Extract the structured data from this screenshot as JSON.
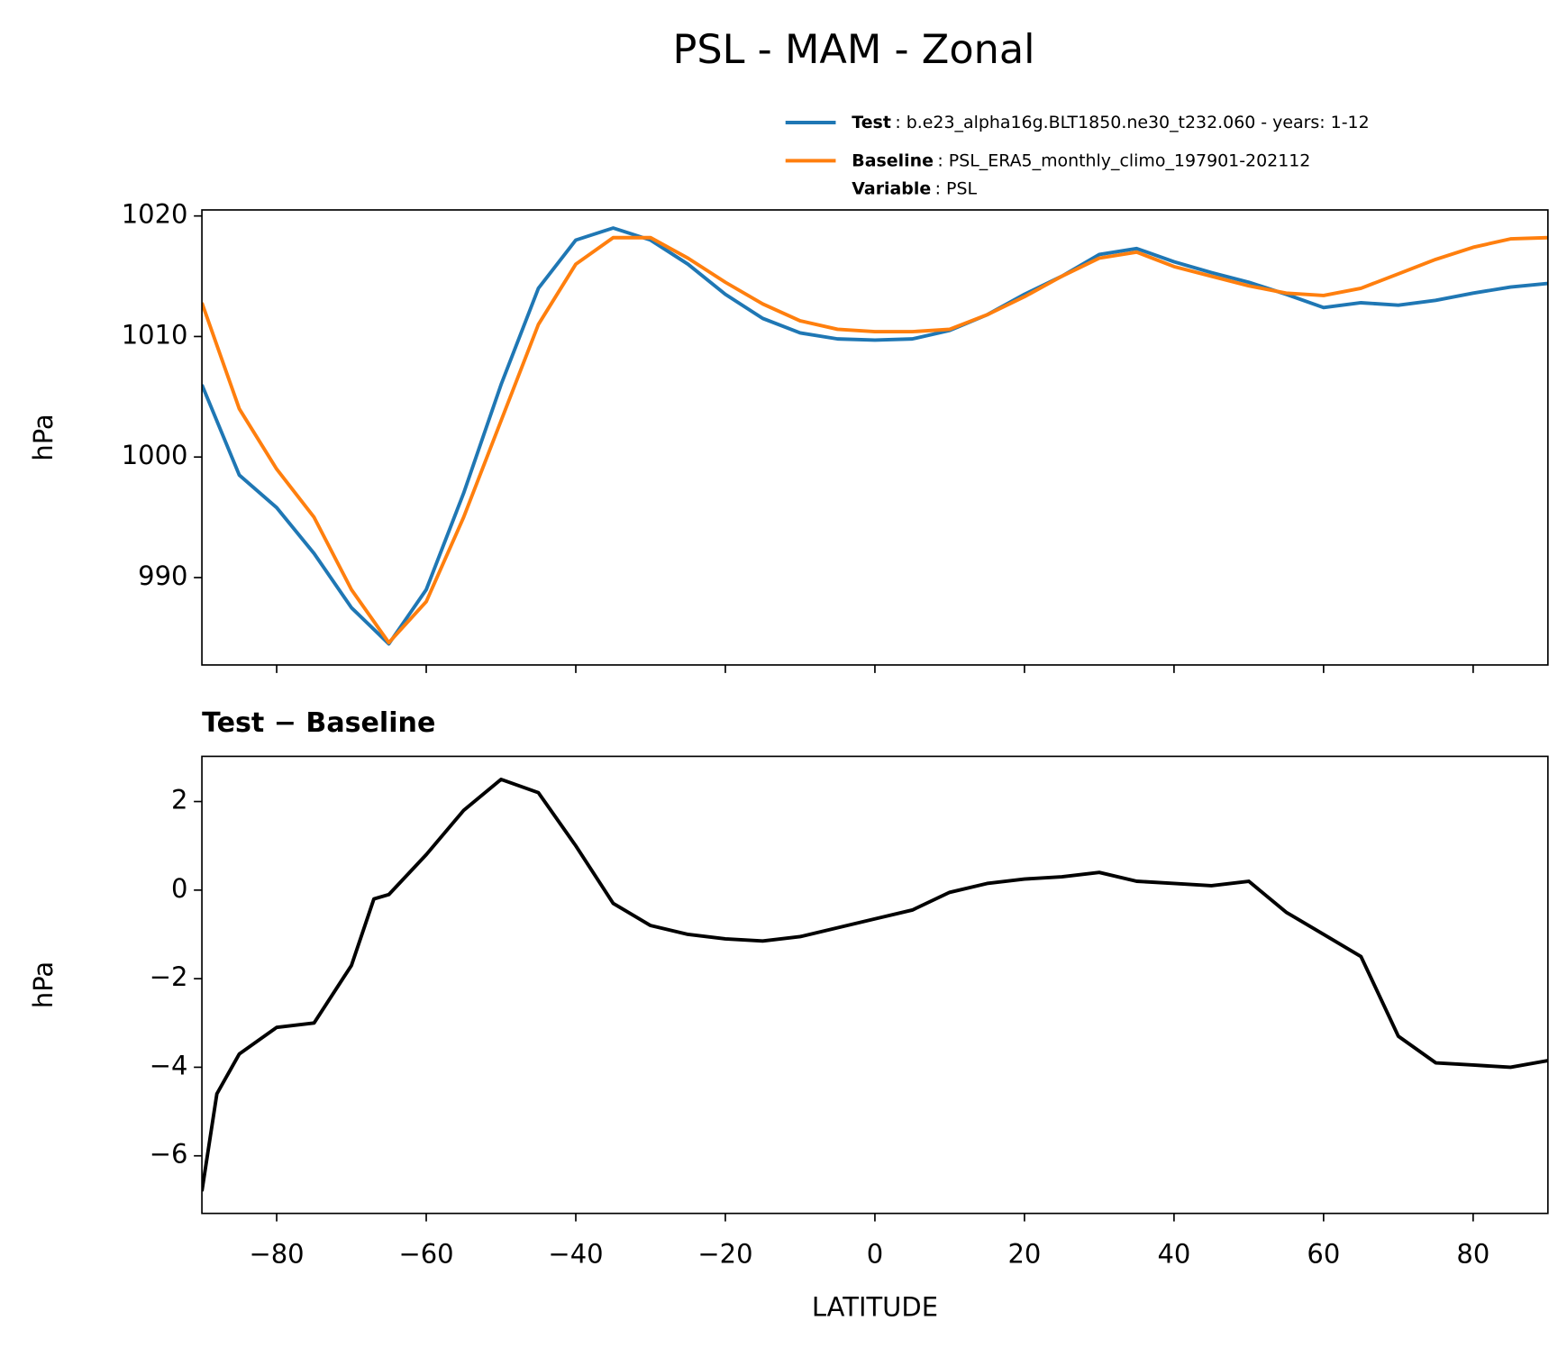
{
  "title": "PSL - MAM - Zonal",
  "chart_data": [
    {
      "type": "line",
      "ylabel": "hPa",
      "x": [
        -90,
        -85,
        -80,
        -75,
        -70,
        -65,
        -60,
        -55,
        -50,
        -45,
        -40,
        -35,
        -30,
        -25,
        -20,
        -15,
        -10,
        -5,
        0,
        5,
        10,
        15,
        20,
        25,
        30,
        35,
        40,
        45,
        50,
        55,
        60,
        65,
        70,
        75,
        80,
        85,
        90
      ],
      "series": [
        {
          "name": "Test",
          "description": ": b.e23_alpha16g.BLT1850.ne30_t232.060 - years: 1-12",
          "color": "#1f77b4",
          "values": [
            1006,
            998.5,
            995.8,
            992,
            987.5,
            984.5,
            989,
            997,
            1006,
            1014,
            1018,
            1019,
            1018,
            1016,
            1013.5,
            1011.5,
            1010.3,
            1009.8,
            1009.7,
            1009.8,
            1010.5,
            1011.8,
            1013.5,
            1015,
            1016.8,
            1017.3,
            1016.2,
            1015.3,
            1014.5,
            1013.5,
            1012.4,
            1012.8,
            1012.6,
            1013,
            1013.6,
            1014.1,
            1014.4
          ]
        },
        {
          "name": "Baseline",
          "description": ": PSL_ERA5_monthly_climo_197901-202112",
          "color": "#ff7f0e",
          "values": [
            1012.8,
            1004,
            999,
            995,
            989,
            984.6,
            988,
            995,
            1003,
            1011,
            1016,
            1018.2,
            1018.2,
            1016.5,
            1014.5,
            1012.7,
            1011.3,
            1010.6,
            1010.4,
            1010.4,
            1010.6,
            1011.8,
            1013.3,
            1015,
            1016.5,
            1017,
            1015.8,
            1015,
            1014.2,
            1013.6,
            1013.4,
            1014,
            1015.2,
            1016.4,
            1017.4,
            1018.1,
            1018.2
          ]
        }
      ],
      "legend_note": {
        "name": "Variable",
        "text": ": PSL"
      },
      "xlim": [
        -90,
        90
      ],
      "xticks": [
        -80,
        -60,
        -40,
        -20,
        0,
        20,
        40,
        60,
        80
      ],
      "xtick_labels": false,
      "ylim": [
        982.75,
        1020.5
      ],
      "yticks": [
        990,
        1000,
        1010,
        1020
      ]
    },
    {
      "type": "line",
      "title": "Test − Baseline",
      "xlabel": "LATITUDE",
      "ylabel": "hPa",
      "x": [
        -90,
        -88,
        -85,
        -80,
        -75,
        -70,
        -67,
        -65,
        -60,
        -55,
        -50,
        -45,
        -40,
        -35,
        -30,
        -25,
        -20,
        -15,
        -10,
        -5,
        0,
        5,
        10,
        15,
        20,
        25,
        30,
        35,
        40,
        45,
        50,
        55,
        60,
        65,
        70,
        75,
        80,
        85,
        90
      ],
      "series": [
        {
          "name": "Test − Baseline",
          "color": "#000000",
          "values": [
            -6.8,
            -4.6,
            -3.7,
            -3.1,
            -3.0,
            -1.7,
            -0.2,
            -0.1,
            0.8,
            1.8,
            2.5,
            2.2,
            1.0,
            -0.3,
            -0.8,
            -1.0,
            -1.1,
            -1.15,
            -1.05,
            -0.85,
            -0.65,
            -0.45,
            -0.05,
            0.15,
            0.25,
            0.3,
            0.4,
            0.2,
            0.15,
            0.1,
            0.2,
            -0.5,
            -1.0,
            -1.5,
            -3.3,
            -3.9,
            -3.95,
            -4.0,
            -3.85
          ]
        }
      ],
      "xlim": [
        -90,
        90
      ],
      "xticks": [
        {
          "value": -80,
          "label": "−80"
        },
        {
          "value": -60,
          "label": "−60"
        },
        {
          "value": -40,
          "label": "−40"
        },
        {
          "value": -20,
          "label": "−20"
        },
        0,
        20,
        40,
        60,
        80
      ],
      "xtick_labels": true,
      "ylim": [
        -7.3,
        3.02
      ],
      "yticks": [
        {
          "value": -6,
          "label": "−6"
        },
        {
          "value": -4,
          "label": "−4"
        },
        {
          "value": -2,
          "label": "−2"
        },
        0,
        2
      ]
    }
  ]
}
